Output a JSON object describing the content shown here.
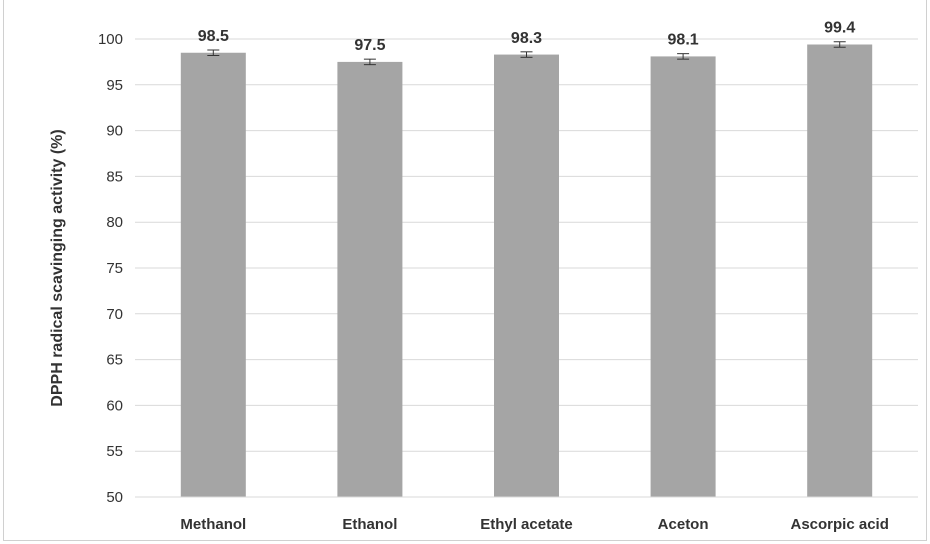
{
  "chart_data": {
    "type": "bar",
    "title": "",
    "xlabel": "",
    "ylabel": "DPPH radical scavinging  activity (%)",
    "ylim": [
      50,
      100
    ],
    "yticks": [
      50,
      55,
      60,
      65,
      70,
      75,
      80,
      85,
      90,
      95,
      100
    ],
    "categories": [
      "Methanol",
      "Ethanol",
      "Ethyl acetate",
      "Aceton",
      "Ascorpic acid"
    ],
    "values": [
      98.5,
      97.5,
      98.3,
      98.1,
      99.4
    ],
    "data_labels": [
      "98.5",
      "97.5",
      "98.3",
      "98.1",
      "99.4"
    ],
    "error": [
      0.3,
      0.3,
      0.3,
      0.3,
      0.3
    ],
    "grid": true,
    "legend": "none",
    "colors": {
      "bar": "#a5a5a5",
      "grid": "#d9d9d9",
      "error": "#333333",
      "text": "#333333"
    }
  }
}
